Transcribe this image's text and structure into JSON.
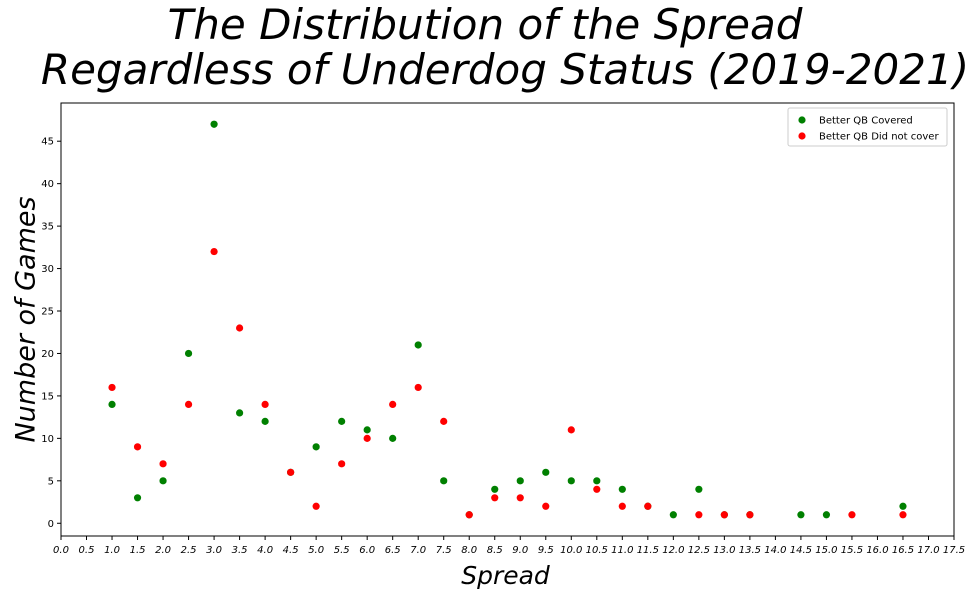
{
  "chart_data": {
    "type": "scatter",
    "title_lines": [
      "The Distribution of the Spread",
      "Regardless of Underdog Status (2019-2021)"
    ],
    "xlabel": "Spread",
    "ylabel": "Number of Games",
    "xlim": [
      0,
      17.5
    ],
    "ylim": [
      -1.5,
      49.5
    ],
    "x_ticks": [
      "0.0",
      "0.5",
      "1.0",
      "1.5",
      "2.0",
      "2.5",
      "3.0",
      "3.5",
      "4.0",
      "4.5",
      "5.0",
      "5.5",
      "6.0",
      "6.5",
      "7.0",
      "7.5",
      "8.0",
      "8.5",
      "9.0",
      "9.5",
      "10.0",
      "10.5",
      "11.0",
      "11.5",
      "12.0",
      "12.5",
      "13.0",
      "13.5",
      "14.0",
      "14.5",
      "15.0",
      "15.5",
      "16.0",
      "16.5",
      "17.0",
      "17.5"
    ],
    "y_ticks": [
      "0",
      "5",
      "10",
      "15",
      "20",
      "25",
      "30",
      "35",
      "40",
      "45"
    ],
    "legend_position": "top-right",
    "grid": false,
    "series": [
      {
        "name": "Better QB Covered",
        "color": "#008000",
        "points": [
          [
            1.0,
            14
          ],
          [
            1.5,
            3
          ],
          [
            2.0,
            5
          ],
          [
            2.5,
            20
          ],
          [
            3.0,
            47
          ],
          [
            3.5,
            13
          ],
          [
            4.0,
            12
          ],
          [
            4.5,
            6
          ],
          [
            5.0,
            9
          ],
          [
            5.5,
            12
          ],
          [
            6.0,
            11
          ],
          [
            6.5,
            10
          ],
          [
            7.0,
            21
          ],
          [
            7.5,
            5
          ],
          [
            8.0,
            1
          ],
          [
            8.5,
            4
          ],
          [
            9.0,
            5
          ],
          [
            9.5,
            6
          ],
          [
            10.0,
            5
          ],
          [
            10.5,
            5
          ],
          [
            11.0,
            4
          ],
          [
            11.5,
            2
          ],
          [
            12.0,
            1
          ],
          [
            12.5,
            4
          ],
          [
            13.0,
            1
          ],
          [
            13.5,
            1
          ],
          [
            14.5,
            1
          ],
          [
            15.0,
            1
          ],
          [
            16.5,
            2
          ]
        ]
      },
      {
        "name": "Better QB Did not cover",
        "color": "#ff0000",
        "points": [
          [
            1.0,
            16
          ],
          [
            1.5,
            9
          ],
          [
            2.0,
            7
          ],
          [
            2.5,
            14
          ],
          [
            3.0,
            32
          ],
          [
            3.5,
            23
          ],
          [
            4.0,
            14
          ],
          [
            4.5,
            6
          ],
          [
            5.0,
            2
          ],
          [
            5.5,
            7
          ],
          [
            6.0,
            10
          ],
          [
            6.5,
            14
          ],
          [
            7.0,
            16
          ],
          [
            7.5,
            12
          ],
          [
            8.0,
            1
          ],
          [
            8.5,
            3
          ],
          [
            9.0,
            3
          ],
          [
            9.5,
            2
          ],
          [
            10.0,
            11
          ],
          [
            10.5,
            4
          ],
          [
            11.0,
            2
          ],
          [
            11.5,
            2
          ],
          [
            12.5,
            1
          ],
          [
            13.0,
            1
          ],
          [
            13.5,
            1
          ],
          [
            15.5,
            1
          ],
          [
            16.5,
            1
          ]
        ]
      }
    ]
  }
}
